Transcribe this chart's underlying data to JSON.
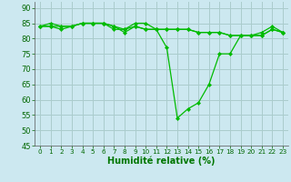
{
  "xlabel": "Humidité relative (%)",
  "background_color": "#cce8f0",
  "grid_color": "#aacccc",
  "line_color": "#00bb00",
  "marker_color": "#00bb00",
  "xlim": [
    -0.5,
    23.5
  ],
  "ylim": [
    45,
    92
  ],
  "yticks": [
    45,
    50,
    55,
    60,
    65,
    70,
    75,
    80,
    85,
    90
  ],
  "xticks": [
    0,
    1,
    2,
    3,
    4,
    5,
    6,
    7,
    8,
    9,
    10,
    11,
    12,
    13,
    14,
    15,
    16,
    17,
    18,
    19,
    20,
    21,
    22,
    23
  ],
  "series": [
    [
      84,
      85,
      84,
      84,
      85,
      85,
      85,
      83,
      83,
      85,
      85,
      83,
      77,
      54,
      57,
      59,
      65,
      75,
      75,
      81,
      81,
      82,
      84,
      82
    ],
    [
      84,
      84,
      84,
      84,
      85,
      85,
      85,
      84,
      82,
      84,
      83,
      83,
      83,
      83,
      83,
      82,
      82,
      82,
      81,
      81,
      81,
      81,
      83,
      82
    ],
    [
      84,
      84,
      83,
      84,
      85,
      85,
      85,
      84,
      83,
      84,
      83,
      83,
      83,
      83,
      83,
      82,
      82,
      82,
      81,
      81,
      81,
      81,
      83,
      82
    ]
  ]
}
